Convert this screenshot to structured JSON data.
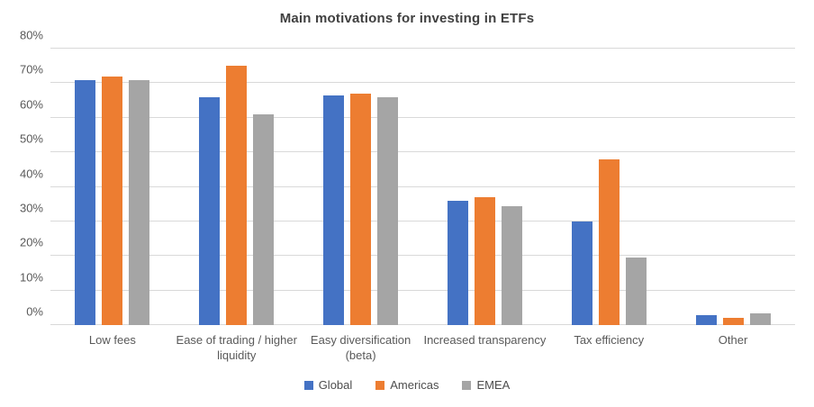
{
  "chart_data": {
    "type": "bar",
    "title": "Main motivations for investing in ETFs",
    "categories": [
      "Low fees",
      "Ease of trading / higher liquidity",
      "Easy diversification (beta)",
      "Increased transparency",
      "Tax efficiency",
      "Other"
    ],
    "series": [
      {
        "name": "Global",
        "color": "#4472c4",
        "values": [
          71,
          66,
          66.5,
          36,
          30,
          3
        ]
      },
      {
        "name": "Americas",
        "color": "#ed7d31",
        "values": [
          72,
          75,
          67,
          37,
          48,
          2
        ]
      },
      {
        "name": "EMEA",
        "color": "#a5a5a5",
        "values": [
          71,
          61,
          66,
          34.5,
          19.5,
          3.5
        ]
      }
    ],
    "ylabel": "",
    "xlabel": "",
    "ylim": [
      0,
      80
    ],
    "y_tick_step": 10,
    "y_tick_labels": [
      "0%",
      "10%",
      "20%",
      "30%",
      "40%",
      "50%",
      "60%",
      "70%",
      "80%"
    ],
    "grid": "horizontal",
    "legend_position": "bottom",
    "colors": {
      "title_text": "#404040",
      "axis_text": "#595959",
      "legend_text": "#4d4d4d",
      "gridline": "#d9d9d9",
      "background": "#ffffff"
    }
  }
}
